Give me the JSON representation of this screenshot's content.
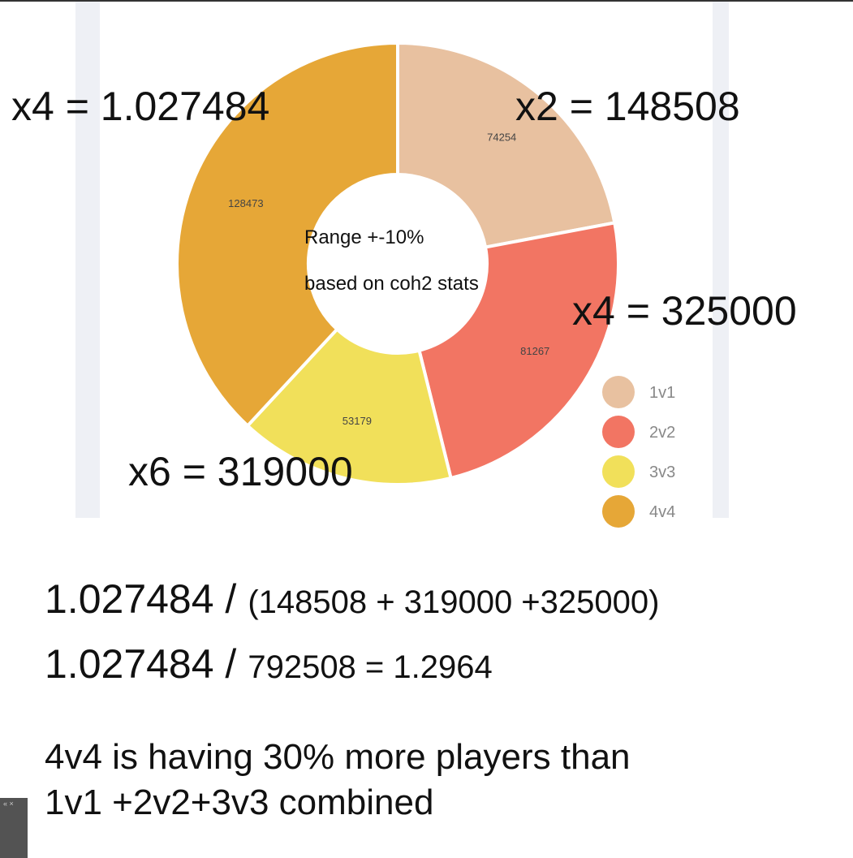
{
  "chart_data": {
    "type": "donut",
    "categories": [
      "1v1",
      "2v2",
      "3v3",
      "4v4"
    ],
    "values": [
      74254,
      81267,
      53179,
      128473
    ],
    "colors": [
      "#e8c1a0",
      "#f27563",
      "#f1e05a",
      "#e6a737"
    ],
    "center_text": [
      "Range +-10%",
      "based on coh2 stats"
    ],
    "legend": "lower-right"
  },
  "annotations": [
    "x4 = 1.027484",
    "x2 = 148508",
    "x4 = 325000",
    "x6 = 319000"
  ],
  "notes": {
    "line1": [
      "1.027484 /",
      "(148508 + 319000 +325000)"
    ],
    "line2": [
      "1.027484 /",
      "792508 = 1.2964"
    ],
    "conclusion": [
      "4v4 is having 30% more players than",
      "1v1 +2v2+3v3 combined"
    ]
  }
}
